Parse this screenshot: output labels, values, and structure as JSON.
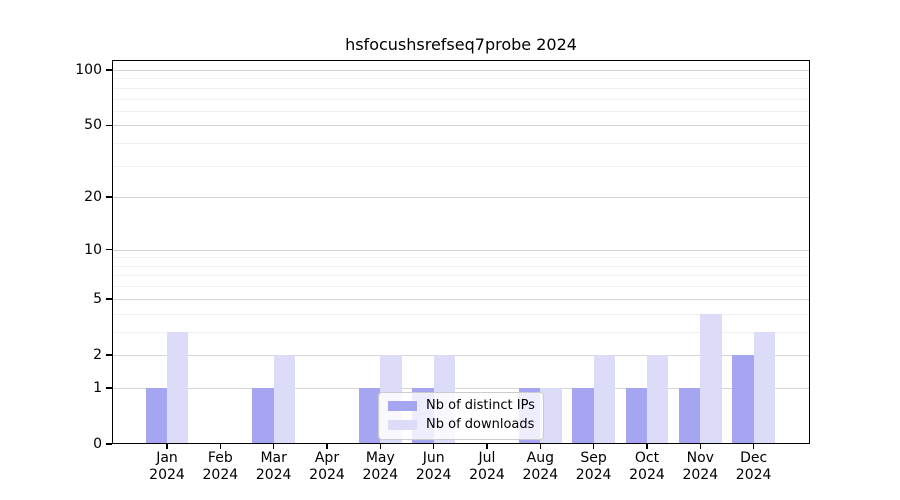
{
  "figure": {
    "title": "hsfocushsrefseq7probe 2024"
  },
  "chart_data": {
    "type": "bar",
    "title": "hsfocushsrefseq7probe 2024",
    "xlabel": "",
    "ylabel": "",
    "categories": [
      "Jan",
      "Feb",
      "Mar",
      "Apr",
      "May",
      "Jun",
      "Jul",
      "Aug",
      "Sep",
      "Oct",
      "Nov",
      "Dec"
    ],
    "year": "2024",
    "series": [
      {
        "name": "Nb of distinct IPs",
        "color": "#a5a5f2",
        "values": [
          1,
          0,
          1,
          0,
          1,
          1,
          0,
          1,
          1,
          1,
          1,
          2
        ]
      },
      {
        "name": "Nb of downloads",
        "color": "#dcdcf8",
        "values": [
          3,
          0,
          2,
          0,
          2,
          2,
          0,
          1,
          2,
          2,
          4,
          3
        ]
      }
    ],
    "yscale": "log1p",
    "ylim": [
      0,
      114
    ],
    "ytick_values_display_order": [
      100,
      50,
      20,
      10,
      5,
      2,
      1,
      0
    ],
    "minor_gridline_values": [
      3,
      4,
      6,
      7,
      8,
      9,
      30,
      40,
      60,
      70,
      80,
      90
    ],
    "grid": "horizontal",
    "legend_position": "lower center"
  }
}
